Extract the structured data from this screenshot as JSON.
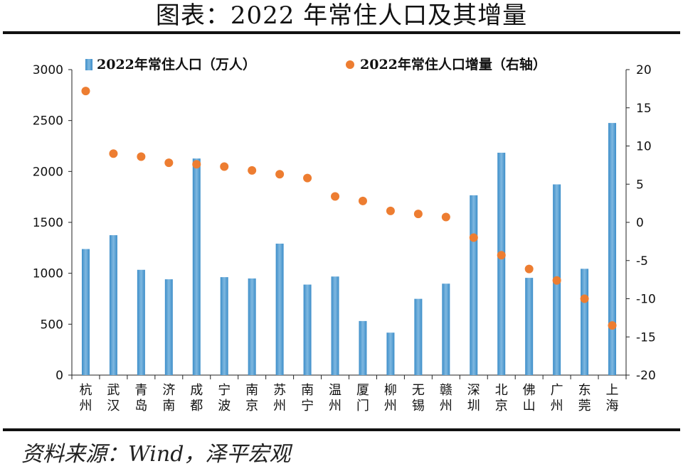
{
  "header": {
    "title": "图表：2022 年常住人口及其增量"
  },
  "footer": {
    "source": "资料来源：Wind，泽平宏观"
  },
  "colors": {
    "bar": "#3d8ec9",
    "bar_light": "#7fb8e0",
    "dot": "#ed7d31",
    "axis": "#222222"
  },
  "chart_data": {
    "type": "bar",
    "categories": [
      "杭州",
      "武汉",
      "青岛",
      "济南",
      "成都",
      "宁波",
      "南京",
      "苏州",
      "南宁",
      "温州",
      "厦门",
      "柳州",
      "无锡",
      "赣州",
      "深圳",
      "北京",
      "佛山",
      "广州",
      "东莞",
      "上海"
    ],
    "series": [
      {
        "name": "2022年常住人口（万人）",
        "type": "bar",
        "axis": "left",
        "values": [
          1238,
          1374,
          1034,
          941,
          2127,
          962,
          949,
          1291,
          889,
          968,
          531,
          417,
          749,
          898,
          1766,
          2184,
          955,
          1873,
          1044,
          2476
        ]
      },
      {
        "name": "2022年常住人口增量（右轴）",
        "type": "scatter",
        "axis": "right",
        "values": [
          17.2,
          9.0,
          8.6,
          7.8,
          7.6,
          7.3,
          6.8,
          6.3,
          5.8,
          3.4,
          2.8,
          1.5,
          1.1,
          0.7,
          -2.0,
          -4.3,
          -6.1,
          -7.6,
          -10.0,
          -13.5
        ]
      }
    ],
    "y_left": {
      "min": 0,
      "max": 3000,
      "ticks": [
        "0",
        "500",
        "1000",
        "1500",
        "2000",
        "2500",
        "3000"
      ]
    },
    "y_right": {
      "min": -20,
      "max": 20,
      "ticks": [
        "-20",
        "-15",
        "-10",
        "-5",
        "0",
        "5",
        "10",
        "15",
        "20"
      ]
    },
    "legend": [
      "2022年常住人口（万人）",
      "2022年常住人口增量（右轴）"
    ],
    "legend_position": "top"
  }
}
